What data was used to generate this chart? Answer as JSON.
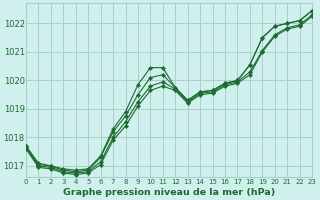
{
  "title": "Graphe pression niveau de la mer (hPa)",
  "background_color": "#cff0ec",
  "grid_color": "#aacfca",
  "line_color": "#1e6b30",
  "x_ticks": [
    0,
    1,
    2,
    3,
    4,
    5,
    6,
    7,
    8,
    9,
    10,
    11,
    12,
    13,
    14,
    15,
    16,
    17,
    18,
    19,
    20,
    21,
    22,
    23
  ],
  "y_ticks": [
    1017,
    1018,
    1019,
    1020,
    1021,
    1022
  ],
  "xlim": [
    0,
    23
  ],
  "ylim": [
    1016.6,
    1022.7
  ],
  "series": [
    [
      1017.7,
      1017.1,
      1017.0,
      1016.9,
      1016.85,
      1016.9,
      1017.35,
      1018.3,
      1018.9,
      1019.85,
      1020.45,
      1020.45,
      1019.75,
      1019.3,
      1019.6,
      1019.65,
      1019.9,
      1020.0,
      1020.55,
      1021.5,
      1021.9,
      1022.0,
      1022.1,
      1022.45
    ],
    [
      1017.7,
      1017.05,
      1017.0,
      1016.85,
      1016.8,
      1016.85,
      1017.3,
      1018.2,
      1018.75,
      1019.5,
      1020.1,
      1020.2,
      1019.75,
      1019.3,
      1019.6,
      1019.65,
      1019.9,
      1020.0,
      1020.55,
      1021.5,
      1021.9,
      1022.0,
      1022.1,
      1022.45
    ],
    [
      1017.65,
      1017.0,
      1016.95,
      1016.8,
      1016.75,
      1016.8,
      1017.15,
      1018.0,
      1018.55,
      1019.25,
      1019.8,
      1019.95,
      1019.7,
      1019.25,
      1019.55,
      1019.6,
      1019.85,
      1019.95,
      1020.3,
      1021.05,
      1021.6,
      1021.85,
      1021.95,
      1022.3
    ],
    [
      1017.6,
      1016.95,
      1016.9,
      1016.75,
      1016.7,
      1016.75,
      1017.05,
      1017.9,
      1018.4,
      1019.1,
      1019.65,
      1019.8,
      1019.65,
      1019.2,
      1019.5,
      1019.55,
      1019.8,
      1019.9,
      1020.2,
      1021.0,
      1021.55,
      1021.8,
      1021.9,
      1022.25
    ]
  ]
}
